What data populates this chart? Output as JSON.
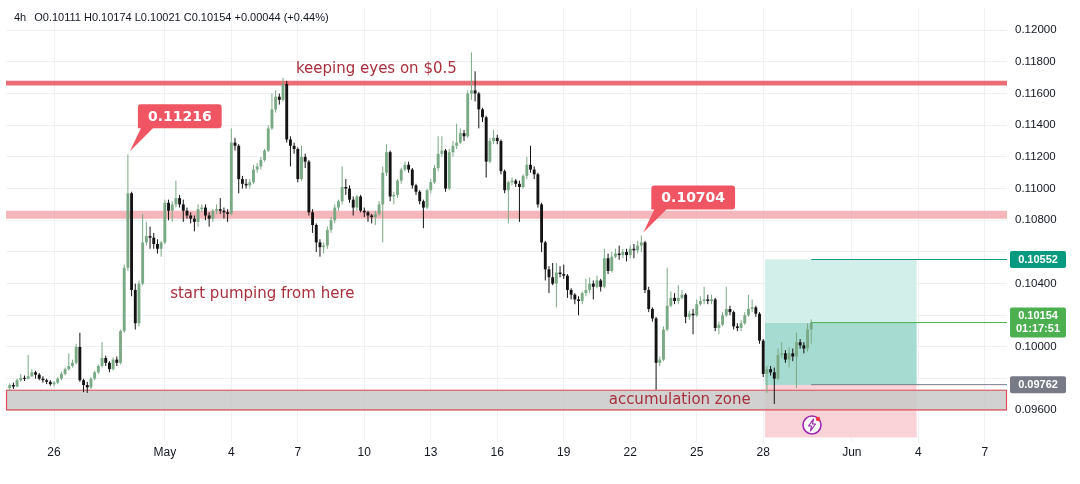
{
  "chart_data": {
    "type": "candlestick",
    "title": "4h",
    "subtitle": "O0.10111 H0.10174 L0.10021 C0.10154 +0.00044 (+0.44%)",
    "x": [
      "--04-24T00:00",
      "--04-24T04:00",
      "--04-24T08:00",
      "--04-24T12:00",
      "--04-24T16:00",
      "--04-24T20:00",
      "--04-25T00:00",
      "--04-25T04:00",
      "--04-25T08:00",
      "--04-25T12:00",
      "--04-25T16:00",
      "--04-25T20:00",
      "--04-26T00:00",
      "--04-26T04:00",
      "--04-26T08:00",
      "--04-26T12:00",
      "--04-26T16:00",
      "--04-26T20:00",
      "--04-27T00:00",
      "--04-27T04:00",
      "--04-27T08:00",
      "--04-27T12:00",
      "--04-27T16:00",
      "--04-27T20:00",
      "--04-28T00:00",
      "--04-28T04:00",
      "--04-28T08:00",
      "--04-28T12:00",
      "--04-28T16:00",
      "--04-28T20:00",
      "--04-29T00:00",
      "--04-29T04:00",
      "--04-29T08:00",
      "--04-29T12:00",
      "--04-29T16:00",
      "--04-29T20:00",
      "--04-30T00:00",
      "--04-30T04:00",
      "--04-30T08:00",
      "--04-30T12:00",
      "--04-30T16:00",
      "--04-30T20:00",
      "--05-01T00:00",
      "--05-01T04:00",
      "--05-01T08:00",
      "--05-01T12:00",
      "--05-01T16:00",
      "--05-01T20:00",
      "--05-02T00:00",
      "--05-02T04:00",
      "--05-02T08:00",
      "--05-02T12:00",
      "--05-02T16:00",
      "--05-02T20:00",
      "--05-03T00:00",
      "--05-03T04:00",
      "--05-03T08:00",
      "--05-03T12:00",
      "--05-03T16:00",
      "--05-03T20:00",
      "--05-04T00:00",
      "--05-04T04:00",
      "--05-04T08:00",
      "--05-04T12:00",
      "--05-04T16:00",
      "--05-04T20:00",
      "--05-05T00:00",
      "--05-05T04:00",
      "--05-05T08:00",
      "--05-05T12:00",
      "--05-05T16:00",
      "--05-05T20:00",
      "--05-06T00:00",
      "--05-06T04:00",
      "--05-06T08:00",
      "--05-06T12:00",
      "--05-06T16:00",
      "--05-06T20:00",
      "--05-07T00:00",
      "--05-07T04:00",
      "--05-07T08:00",
      "--05-07T12:00",
      "--05-07T16:00",
      "--05-07T20:00",
      "--05-08T00:00",
      "--05-08T04:00",
      "--05-08T08:00",
      "--05-08T12:00",
      "--05-08T16:00",
      "--05-08T20:00",
      "--05-09T00:00",
      "--05-09T04:00",
      "--05-09T08:00",
      "--05-09T12:00",
      "--05-09T16:00",
      "--05-09T20:00",
      "--05-10T00:00",
      "--05-10T04:00",
      "--05-10T08:00",
      "--05-10T12:00",
      "--05-10T16:00",
      "--05-10T20:00",
      "--05-11T00:00",
      "--05-11T04:00",
      "--05-11T08:00",
      "--05-11T12:00",
      "--05-11T16:00",
      "--05-11T20:00",
      "--05-12T00:00",
      "--05-12T04:00",
      "--05-12T08:00",
      "--05-12T12:00",
      "--05-12T16:00",
      "--05-12T20:00",
      "--05-13T00:00",
      "--05-13T04:00",
      "--05-13T08:00",
      "--05-13T12:00",
      "--05-13T16:00",
      "--05-13T20:00",
      "--05-14T00:00",
      "--05-14T04:00",
      "--05-14T08:00",
      "--05-14T12:00",
      "--05-14T16:00",
      "--05-14T20:00",
      "--05-15T00:00",
      "--05-15T04:00",
      "--05-15T08:00",
      "--05-15T12:00",
      "--05-15T16:00",
      "--05-15T20:00",
      "--05-16T00:00",
      "--05-16T04:00",
      "--05-16T08:00",
      "--05-16T12:00",
      "--05-16T16:00",
      "--05-16T20:00",
      "--05-17T00:00",
      "--05-17T04:00",
      "--05-17T08:00",
      "--05-17T12:00",
      "--05-17T16:00",
      "--05-17T20:00",
      "--05-18T00:00",
      "--05-18T04:00",
      "--05-18T08:00",
      "--05-18T12:00",
      "--05-18T16:00",
      "--05-18T20:00",
      "--05-19T00:00",
      "--05-19T04:00",
      "--05-19T08:00",
      "--05-19T12:00",
      "--05-19T16:00",
      "--05-19T20:00",
      "--05-20T00:00",
      "--05-20T04:00",
      "--05-20T08:00",
      "--05-20T12:00",
      "--05-20T16:00",
      "--05-20T20:00",
      "--05-21T00:00",
      "--05-21T04:00",
      "--05-21T08:00",
      "--05-21T12:00",
      "--05-21T16:00",
      "--05-21T20:00",
      "--05-22T00:00",
      "--05-22T04:00",
      "--05-22T08:00",
      "--05-22T12:00",
      "--05-22T16:00",
      "--05-22T20:00",
      "--05-23T00:00",
      "--05-23T04:00",
      "--05-23T08:00",
      "--05-23T12:00",
      "--05-23T16:00",
      "--05-23T20:00",
      "--05-24T00:00",
      "--05-24T04:00",
      "--05-24T08:00",
      "--05-24T12:00",
      "--05-24T16:00",
      "--05-24T20:00",
      "--05-25T00:00",
      "--05-25T04:00",
      "--05-25T08:00",
      "--05-25T12:00",
      "--05-25T16:00",
      "--05-25T20:00",
      "--05-26T00:00",
      "--05-26T04:00",
      "--05-26T08:00",
      "--05-26T12:00",
      "--05-26T16:00",
      "--05-26T20:00",
      "--05-27T00:00",
      "--05-27T04:00",
      "--05-27T08:00",
      "--05-27T12:00",
      "--05-27T16:00",
      "--05-27T20:00",
      "--05-28T00:00",
      "--05-28T04:00",
      "--05-28T08:00",
      "--05-28T12:00",
      "--05-28T16:00",
      "--05-28T20:00",
      "--05-29T00:00",
      "--05-29T04:00",
      "--05-29T08:00",
      "--05-29T12:00",
      "--05-29T16:00",
      "--05-29T20:00",
      "--05-30T00:00",
      "--05-30T04:00"
    ],
    "ohlc": [
      [
        0.0974,
        0.0977,
        0.09725,
        0.0976
      ],
      [
        0.0976,
        0.09775,
        0.09735,
        0.0975
      ],
      [
        0.0975,
        0.098,
        0.09745,
        0.0979
      ],
      [
        0.0979,
        0.0983,
        0.0978,
        0.09805
      ],
      [
        0.09805,
        0.0982,
        0.09785,
        0.098
      ],
      [
        0.098,
        0.0995,
        0.09795,
        0.09815
      ],
      [
        0.09815,
        0.0986,
        0.0981,
        0.0984
      ],
      [
        0.0984,
        0.0985,
        0.098,
        0.09825
      ],
      [
        0.09825,
        0.09835,
        0.0979,
        0.098
      ],
      [
        0.098,
        0.09815,
        0.09775,
        0.0979
      ],
      [
        0.0979,
        0.098,
        0.09765,
        0.0978
      ],
      [
        0.0978,
        0.0979,
        0.09755,
        0.09765
      ],
      [
        0.09765,
        0.09785,
        0.0975,
        0.09775
      ],
      [
        0.09775,
        0.0981,
        0.09765,
        0.098
      ],
      [
        0.098,
        0.09845,
        0.0979,
        0.0983
      ],
      [
        0.0983,
        0.0987,
        0.0982,
        0.0986
      ],
      [
        0.0986,
        0.0996,
        0.0985,
        0.0988
      ],
      [
        0.0988,
        0.0992,
        0.0987,
        0.099
      ],
      [
        0.099,
        0.1002,
        0.0989,
        0.1
      ],
      [
        0.1,
        0.1009,
        0.0978,
        0.0979
      ],
      [
        0.0979,
        0.098,
        0.09715,
        0.0976
      ],
      [
        0.0976,
        0.0978,
        0.0971,
        0.09745
      ],
      [
        0.09745,
        0.0981,
        0.09735,
        0.098
      ],
      [
        0.098,
        0.0985,
        0.0979,
        0.0984
      ],
      [
        0.0984,
        0.0989,
        0.0983,
        0.0988
      ],
      [
        0.0988,
        0.1003,
        0.0987,
        0.0993
      ],
      [
        0.0993,
        0.09945,
        0.0988,
        0.099
      ],
      [
        0.099,
        0.0991,
        0.0984,
        0.0986
      ],
      [
        0.0986,
        0.09935,
        0.0985,
        0.0992
      ],
      [
        0.0992,
        0.0994,
        0.0988,
        0.099
      ],
      [
        0.099,
        0.1011,
        0.0989,
        0.101
      ],
      [
        0.101,
        0.1052,
        0.1009,
        0.105
      ],
      [
        0.105,
        0.11216,
        0.1048,
        0.1097
      ],
      [
        0.1097,
        0.1098,
        0.1032,
        0.1036
      ],
      [
        0.1036,
        0.104,
        0.1011,
        0.1015
      ],
      [
        0.1015,
        0.1042,
        0.1013,
        0.104
      ],
      [
        0.104,
        0.1084,
        0.1039,
        0.1066
      ],
      [
        0.1066,
        0.1079,
        0.1064,
        0.107
      ],
      [
        0.107,
        0.1076,
        0.1062,
        0.1069
      ],
      [
        0.1069,
        0.1072,
        0.1062,
        0.1065
      ],
      [
        0.1065,
        0.1068,
        0.1059,
        0.1062
      ],
      [
        0.1062,
        0.1067,
        0.1057,
        0.1066
      ],
      [
        0.1066,
        0.1093,
        0.1065,
        0.1091
      ],
      [
        0.1091,
        0.1093,
        0.108,
        0.1086
      ],
      [
        0.1086,
        0.1092,
        0.1079,
        0.109
      ],
      [
        0.109,
        0.1105,
        0.1088,
        0.1094
      ],
      [
        0.1094,
        0.1096,
        0.1088,
        0.109
      ],
      [
        0.109,
        0.1093,
        0.1079,
        0.1086
      ],
      [
        0.1086,
        0.1088,
        0.1081,
        0.1083
      ],
      [
        0.1083,
        0.1085,
        0.1078,
        0.1081
      ],
      [
        0.1081,
        0.1083,
        0.1073,
        0.1079
      ],
      [
        0.1079,
        0.109,
        0.1076,
        0.1087
      ],
      [
        0.1087,
        0.109,
        0.1085,
        0.1088
      ],
      [
        0.1088,
        0.109,
        0.108,
        0.1083
      ],
      [
        0.1083,
        0.1085,
        0.1076,
        0.1081
      ],
      [
        0.1081,
        0.1087,
        0.1079,
        0.1086
      ],
      [
        0.1086,
        0.109,
        0.1084,
        0.1087
      ],
      [
        0.1087,
        0.1094,
        0.1084,
        0.1086
      ],
      [
        0.1086,
        0.1088,
        0.1081,
        0.1085
      ],
      [
        0.1085,
        0.1087,
        0.1079,
        0.1084
      ],
      [
        0.1084,
        0.1138,
        0.1083,
        0.1129
      ],
      [
        0.1129,
        0.1132,
        0.1124,
        0.1127
      ],
      [
        0.1127,
        0.1128,
        0.1097,
        0.1106
      ],
      [
        0.1106,
        0.1108,
        0.11,
        0.1103
      ],
      [
        0.1103,
        0.1106,
        0.11,
        0.1102
      ],
      [
        0.1102,
        0.1106,
        0.11,
        0.1104
      ],
      [
        0.1104,
        0.1115,
        0.1103,
        0.1112
      ],
      [
        0.1112,
        0.1116,
        0.111,
        0.1114
      ],
      [
        0.1114,
        0.112,
        0.1112,
        0.1118
      ],
      [
        0.1118,
        0.1125,
        0.1117,
        0.1124
      ],
      [
        0.1124,
        0.114,
        0.1123,
        0.1138
      ],
      [
        0.1138,
        0.116,
        0.1137,
        0.115
      ],
      [
        0.115,
        0.1162,
        0.1148,
        0.1158
      ],
      [
        0.1158,
        0.116,
        0.1153,
        0.1156
      ],
      [
        0.1156,
        0.117,
        0.1155,
        0.1166
      ],
      [
        0.1166,
        0.1168,
        0.1129,
        0.1131
      ],
      [
        0.1131,
        0.1133,
        0.1114,
        0.1127
      ],
      [
        0.1127,
        0.1129,
        0.1122,
        0.1125
      ],
      [
        0.1125,
        0.1126,
        0.1104,
        0.1106
      ],
      [
        0.1106,
        0.1127,
        0.1105,
        0.112
      ],
      [
        0.112,
        0.1122,
        0.1113,
        0.1117
      ],
      [
        0.1117,
        0.1118,
        0.1083,
        0.1085
      ],
      [
        0.1085,
        0.1087,
        0.1072,
        0.1077
      ],
      [
        0.1077,
        0.1078,
        0.106,
        0.1066
      ],
      [
        0.1066,
        0.1068,
        0.1057,
        0.1063
      ],
      [
        0.1063,
        0.1066,
        0.1059,
        0.1064
      ],
      [
        0.1064,
        0.1076,
        0.1062,
        0.1074
      ],
      [
        0.1074,
        0.1082,
        0.1072,
        0.108
      ],
      [
        0.108,
        0.109,
        0.1078,
        0.1088
      ],
      [
        0.1088,
        0.1093,
        0.1086,
        0.1092
      ],
      [
        0.1092,
        0.1114,
        0.109,
        0.1101
      ],
      [
        0.1101,
        0.1106,
        0.1096,
        0.11
      ],
      [
        0.11,
        0.1102,
        0.1091,
        0.1093
      ],
      [
        0.1093,
        0.1095,
        0.1083,
        0.1088
      ],
      [
        0.1088,
        0.1096,
        0.1086,
        0.1095
      ],
      [
        0.1095,
        0.1096,
        0.1085,
        0.1086
      ],
      [
        0.1086,
        0.1088,
        0.1082,
        0.1085
      ],
      [
        0.1085,
        0.1086,
        0.1079,
        0.1083
      ],
      [
        0.1083,
        0.1084,
        0.1078,
        0.1082
      ],
      [
        0.1082,
        0.1086,
        0.1077,
        0.1084
      ],
      [
        0.1084,
        0.1092,
        0.1083,
        0.109
      ],
      [
        0.109,
        0.1114,
        0.1066,
        0.111
      ],
      [
        0.111,
        0.1128,
        0.1108,
        0.1123
      ],
      [
        0.1123,
        0.1124,
        0.1092,
        0.1095
      ],
      [
        0.1095,
        0.1098,
        0.109,
        0.1096
      ],
      [
        0.1096,
        0.1106,
        0.1094,
        0.1105
      ],
      [
        0.1105,
        0.1113,
        0.1103,
        0.1112
      ],
      [
        0.1112,
        0.1117,
        0.1111,
        0.1115
      ],
      [
        0.1115,
        0.1117,
        0.111,
        0.1112
      ],
      [
        0.1112,
        0.1113,
        0.11,
        0.1102
      ],
      [
        0.1102,
        0.1103,
        0.1096,
        0.1098
      ],
      [
        0.1098,
        0.1099,
        0.109,
        0.1092
      ],
      [
        0.1092,
        0.1093,
        0.1075,
        0.1088
      ],
      [
        0.1088,
        0.11,
        0.1087,
        0.1099
      ],
      [
        0.1099,
        0.1106,
        0.1097,
        0.1104
      ],
      [
        0.1104,
        0.1115,
        0.1103,
        0.1113
      ],
      [
        0.1113,
        0.1133,
        0.1111,
        0.1122
      ],
      [
        0.1122,
        0.1133,
        0.112,
        0.1124
      ],
      [
        0.1124,
        0.1125,
        0.1098,
        0.11
      ],
      [
        0.11,
        0.1125,
        0.1099,
        0.1123
      ],
      [
        0.1123,
        0.113,
        0.112,
        0.1127
      ],
      [
        0.1127,
        0.1141,
        0.1125,
        0.1129
      ],
      [
        0.1129,
        0.1138,
        0.1128,
        0.1135
      ],
      [
        0.1135,
        0.1137,
        0.113,
        0.1133
      ],
      [
        0.1133,
        0.1162,
        0.1132,
        0.116
      ],
      [
        0.116,
        0.1186,
        0.1156,
        0.1162
      ],
      [
        0.1162,
        0.1174,
        0.1155,
        0.116
      ],
      [
        0.116,
        0.1161,
        0.1138,
        0.115
      ],
      [
        0.115,
        0.1151,
        0.1142,
        0.1145
      ],
      [
        0.1145,
        0.1146,
        0.1107,
        0.1117
      ],
      [
        0.1117,
        0.1132,
        0.1116,
        0.113
      ],
      [
        0.113,
        0.1137,
        0.1128,
        0.1132
      ],
      [
        0.1132,
        0.1134,
        0.1128,
        0.113
      ],
      [
        0.113,
        0.1131,
        0.1109,
        0.1111
      ],
      [
        0.1111,
        0.1112,
        0.1097,
        0.1099
      ],
      [
        0.1099,
        0.1105,
        0.1078,
        0.1104
      ],
      [
        0.1104,
        0.1107,
        0.1102,
        0.1105
      ],
      [
        0.1105,
        0.1106,
        0.1101,
        0.1103
      ],
      [
        0.1103,
        0.1105,
        0.1079,
        0.1101
      ],
      [
        0.1101,
        0.1109,
        0.11,
        0.1108
      ],
      [
        0.1108,
        0.112,
        0.1106,
        0.1115
      ],
      [
        0.1115,
        0.1127,
        0.111,
        0.1112
      ],
      [
        0.1112,
        0.1114,
        0.1106,
        0.1109
      ],
      [
        0.1109,
        0.111,
        0.1088,
        0.109
      ],
      [
        0.109,
        0.1091,
        0.106,
        0.1066
      ],
      [
        0.1066,
        0.1067,
        0.1042,
        0.1049
      ],
      [
        0.1049,
        0.1051,
        0.1034,
        0.1044
      ],
      [
        0.1044,
        0.1053,
        0.1039,
        0.104
      ],
      [
        0.104,
        0.1053,
        0.1025,
        0.1047
      ],
      [
        0.1047,
        0.1051,
        0.1044,
        0.1046
      ],
      [
        0.1046,
        0.1052,
        0.1043,
        0.1045
      ],
      [
        0.1045,
        0.1046,
        0.1031,
        0.1036
      ],
      [
        0.1036,
        0.1037,
        0.103,
        0.1033
      ],
      [
        0.1033,
        0.1034,
        0.1027,
        0.103
      ],
      [
        0.103,
        0.1032,
        0.102,
        0.1029
      ],
      [
        0.1029,
        0.1035,
        0.1027,
        0.1034
      ],
      [
        0.1034,
        0.1043,
        0.1032,
        0.1036
      ],
      [
        0.1036,
        0.1044,
        0.1034,
        0.104
      ],
      [
        0.104,
        0.1042,
        0.103,
        0.1038
      ],
      [
        0.1038,
        0.1045,
        0.1037,
        0.1042
      ],
      [
        0.1042,
        0.1043,
        0.1035,
        0.1038
      ],
      [
        0.1038,
        0.1062,
        0.1037,
        0.1056
      ],
      [
        0.1056,
        0.1059,
        0.1046,
        0.1048
      ],
      [
        0.1048,
        0.106,
        0.1047,
        0.1057
      ],
      [
        0.1057,
        0.1062,
        0.1056,
        0.1059
      ],
      [
        0.1059,
        0.1064,
        0.1055,
        0.1058
      ],
      [
        0.1058,
        0.1062,
        0.1056,
        0.106
      ],
      [
        0.106,
        0.1062,
        0.1054,
        0.1058
      ],
      [
        0.1058,
        0.1064,
        0.1056,
        0.1062
      ],
      [
        0.1062,
        0.1065,
        0.1056,
        0.1061
      ],
      [
        0.1061,
        0.1067,
        0.1059,
        0.1064
      ],
      [
        0.1064,
        0.10704,
        0.106,
        0.1066
      ],
      [
        0.1066,
        0.1067,
        0.1034,
        0.1036
      ],
      [
        0.1036,
        0.1038,
        0.1022,
        0.1024
      ],
      [
        0.1024,
        0.1025,
        0.1016,
        0.1018
      ],
      [
        0.1018,
        0.1019,
        0.0973,
        0.099
      ],
      [
        0.099,
        0.0994,
        0.0988,
        0.0992
      ],
      [
        0.0992,
        0.1013,
        0.0991,
        0.1011
      ],
      [
        0.1011,
        0.105,
        0.101,
        0.1026
      ],
      [
        0.1026,
        0.1035,
        0.1025,
        0.1031
      ],
      [
        0.1031,
        0.1034,
        0.1027,
        0.1029
      ],
      [
        0.1029,
        0.1039,
        0.1027,
        0.1031
      ],
      [
        0.1031,
        0.1036,
        0.103,
        0.1033
      ],
      [
        0.1033,
        0.1034,
        0.1015,
        0.1019
      ],
      [
        0.1019,
        0.1023,
        0.1017,
        0.1021
      ],
      [
        0.1021,
        0.1024,
        0.1008,
        0.102
      ],
      [
        0.102,
        0.103,
        0.1019,
        0.1027
      ],
      [
        0.1027,
        0.1032,
        0.1026,
        0.1029
      ],
      [
        0.1029,
        0.1038,
        0.1027,
        0.103
      ],
      [
        0.103,
        0.1033,
        0.1027,
        0.1029
      ],
      [
        0.1029,
        0.1033,
        0.1027,
        0.103
      ],
      [
        0.103,
        0.1031,
        0.101,
        0.1012
      ],
      [
        0.1012,
        0.1016,
        0.1008,
        0.1014
      ],
      [
        0.1014,
        0.1022,
        0.1013,
        0.102
      ],
      [
        0.102,
        0.1038,
        0.1019,
        0.1024
      ],
      [
        0.1024,
        0.1026,
        0.102,
        0.1022
      ],
      [
        0.1022,
        0.1023,
        0.1011,
        0.1013
      ],
      [
        0.1013,
        0.1015,
        0.101,
        0.1012
      ],
      [
        0.1012,
        0.1017,
        0.101,
        0.1015
      ],
      [
        0.1015,
        0.1022,
        0.1014,
        0.102
      ],
      [
        0.102,
        0.1033,
        0.1019,
        0.1024
      ],
      [
        0.1024,
        0.103,
        0.1022,
        0.1025
      ],
      [
        0.1025,
        0.1026,
        0.1019,
        0.1021
      ],
      [
        0.1021,
        0.1022,
        0.1002,
        0.1004
      ],
      [
        0.1004,
        0.1005,
        0.0981,
        0.0983
      ],
      [
        0.0983,
        0.0988,
        0.0971,
        0.0986
      ],
      [
        0.0986,
        0.0988,
        0.0982,
        0.0984
      ],
      [
        0.0984,
        0.0987,
        0.0964,
        0.098
      ],
      [
        0.098,
        0.0999,
        0.0979,
        0.0995
      ],
      [
        0.0995,
        0.1003,
        0.0993,
        0.0996
      ],
      [
        0.0996,
        0.0998,
        0.099,
        0.0992
      ],
      [
        0.0992,
        0.1,
        0.0987,
        0.0996
      ],
      [
        0.0996,
        0.0999,
        0.0991,
        0.0994
      ],
      [
        0.0994,
        0.1009,
        0.0974,
        0.1003
      ],
      [
        0.1003,
        0.1005,
        0.0999,
        0.1001
      ],
      [
        0.1001,
        0.1003,
        0.0996,
        0.0999
      ],
      [
        0.0999,
        0.1015,
        0.0997,
        0.10111
      ],
      [
        0.10111,
        0.10174,
        0.10021,
        0.10154
      ]
    ],
    "colors": [
      "#7aa985",
      "#131313",
      "#7aa985",
      "#7aa985",
      "#131313",
      "#7aa985",
      "#7aa985",
      "#131313",
      "#131313",
      "#131313",
      "#131313",
      "#131313",
      "#7aa985",
      "#7aa985",
      "#7aa985",
      "#7aa985",
      "#7aa985",
      "#7aa985",
      "#7aa985",
      "#131313",
      "#131313",
      "#131313",
      "#7aa985",
      "#7aa985",
      "#7aa985",
      "#7aa985",
      "#131313",
      "#131313",
      "#7aa985",
      "#131313",
      "#7aa985",
      "#7aa985",
      "#7aa985",
      "#131313",
      "#131313",
      "#7aa985",
      "#7aa985",
      "#7aa985",
      "#131313",
      "#131313",
      "#131313",
      "#7aa985",
      "#7aa985",
      "#131313",
      "#7aa985",
      "#7aa985",
      "#131313",
      "#131313",
      "#131313",
      "#131313",
      "#131313",
      "#7aa985",
      "#7aa985",
      "#131313",
      "#131313",
      "#7aa985",
      "#7aa985",
      "#131313",
      "#131313",
      "#131313",
      "#7aa985",
      "#131313",
      "#131313",
      "#131313",
      "#131313",
      "#7aa985",
      "#7aa985",
      "#7aa985",
      "#7aa985",
      "#7aa985",
      "#7aa985",
      "#7aa985",
      "#7aa985",
      "#131313",
      "#7aa985",
      "#131313",
      "#131313",
      "#131313",
      "#131313",
      "#7aa985",
      "#131313",
      "#131313",
      "#131313",
      "#131313",
      "#131313",
      "#7aa985",
      "#7aa985",
      "#7aa985",
      "#7aa985",
      "#7aa985",
      "#7aa985",
      "#131313",
      "#131313",
      "#131313",
      "#7aa985",
      "#131313",
      "#131313",
      "#131313",
      "#131313",
      "#7aa985",
      "#7aa985",
      "#7aa985",
      "#7aa985",
      "#131313",
      "#7aa985",
      "#7aa985",
      "#7aa985",
      "#7aa985",
      "#131313",
      "#131313",
      "#131313",
      "#131313",
      "#131313",
      "#7aa985",
      "#7aa985",
      "#7aa985",
      "#7aa985",
      "#7aa985",
      "#131313",
      "#7aa985",
      "#7aa985",
      "#7aa985",
      "#7aa985",
      "#131313",
      "#7aa985",
      "#7aa985",
      "#131313",
      "#131313",
      "#131313",
      "#131313",
      "#7aa985",
      "#7aa985",
      "#131313",
      "#131313",
      "#131313",
      "#7aa985",
      "#7aa985",
      "#131313",
      "#131313",
      "#7aa985",
      "#7aa985",
      "#131313",
      "#131313",
      "#131313",
      "#131313",
      "#131313",
      "#131313",
      "#131313",
      "#7aa985",
      "#131313",
      "#131313",
      "#131313",
      "#131313",
      "#131313",
      "#131313",
      "#7aa985",
      "#7aa985",
      "#7aa985",
      "#131313",
      "#7aa985",
      "#131313",
      "#7aa985",
      "#131313",
      "#7aa985",
      "#7aa985",
      "#131313",
      "#7aa985",
      "#131313",
      "#7aa985",
      "#131313",
      "#7aa985",
      "#7aa985",
      "#131313",
      "#131313",
      "#131313",
      "#131313",
      "#7aa985",
      "#7aa985",
      "#7aa985",
      "#7aa985",
      "#131313",
      "#7aa985",
      "#7aa985",
      "#131313",
      "#7aa985",
      "#131313",
      "#7aa985",
      "#7aa985",
      "#7aa985",
      "#131313",
      "#7aa985",
      "#131313",
      "#7aa985",
      "#7aa985",
      "#7aa985",
      "#131313",
      "#131313",
      "#131313",
      "#7aa985",
      "#7aa985",
      "#7aa985",
      "#7aa985",
      "#131313",
      "#131313",
      "#131313",
      "#7aa985",
      "#131313",
      "#131313",
      "#7aa985",
      "#7aa985",
      "#131313",
      "#7aa985",
      "#131313",
      "#7aa985",
      "#131313",
      "#131313",
      "#7aa985",
      "#7aa985"
    ],
    "series": [
      {
        "type": "bar",
        "x": [
          "--05-31T12:00"
        ],
        "base": [
          0.10154
        ],
        "values": [
          0.00398
        ],
        "color": "#d3efe9"
      },
      {
        "type": "bar",
        "x": [
          "--05-31T12:00"
        ],
        "base": [
          0.09762
        ],
        "values": [
          0.00392
        ],
        "color": "#a6dbd1"
      },
      {
        "type": "bar",
        "x": [
          "--05-31T12:00"
        ],
        "base": [
          0.0943
        ],
        "values": [
          0.00332
        ],
        "color": "#f9d3d7"
      }
    ],
    "xlim": [
      "--04-23T20:00",
      "--06-08T00:00"
    ],
    "xticks": [
      {
        "value": "--04-26",
        "label": "26"
      },
      {
        "value": "--05-01",
        "label": "May"
      },
      {
        "value": "--05-04",
        "label": "4"
      },
      {
        "value": "--05-07",
        "label": "7"
      },
      {
        "value": "--05-10",
        "label": "10"
      },
      {
        "value": "--05-13",
        "label": "13"
      },
      {
        "value": "--05-16",
        "label": "16"
      },
      {
        "value": "--05-19",
        "label": "19"
      },
      {
        "value": "--05-22",
        "label": "22"
      },
      {
        "value": "--05-25",
        "label": "25"
      },
      {
        "value": "--05-28",
        "label": "28"
      },
      {
        "value": "--06-01",
        "label": "Jun"
      },
      {
        "value": "--06-04",
        "label": "4"
      },
      {
        "value": "--06-07",
        "label": "7"
      }
    ],
    "ylim": [
      0.094,
      0.1214
    ],
    "yticks": [
      {
        "value": 0.096,
        "label": "0.09600"
      },
      {
        "value": 0.098,
        "label": null
      },
      {
        "value": 0.1,
        "label": "0.10000"
      },
      {
        "value": 0.102,
        "label": null
      },
      {
        "value": 0.104,
        "label": "0.10400"
      },
      {
        "value": 0.106,
        "label": null
      },
      {
        "value": 0.108,
        "label": "0.10800"
      },
      {
        "value": 0.11,
        "label": "0.11000"
      },
      {
        "value": 0.112,
        "label": "0.11200"
      },
      {
        "value": 0.114,
        "label": "0.11400"
      },
      {
        "value": 0.116,
        "label": "0.11600"
      },
      {
        "value": 0.118,
        "label": "0.11800"
      },
      {
        "value": 0.12,
        "label": "0.12000"
      }
    ],
    "grid": true,
    "bands": [
      {
        "axis": "y",
        "from": 0.1165,
        "to": 0.1168,
        "label": "keeping eyes on $0.5",
        "color": "#e8535e"
      },
      {
        "axis": "y",
        "from": 0.1081,
        "to": 0.1086,
        "color": "#f2a9af"
      },
      {
        "axis": "y",
        "from": 0.096,
        "to": 0.0973,
        "label": "accumulation zone",
        "color": "#c9c9c9"
      }
    ],
    "ref_lines": [
      {
        "axis": "y",
        "value": 0.10552,
        "label": "0.10552",
        "color": "#089981"
      },
      {
        "axis": "y",
        "value": 0.10154,
        "label": "0.10154 01:17:51",
        "color": "#4caf50"
      },
      {
        "axis": "y",
        "value": 0.09762,
        "label": "0.09762",
        "color": "#787b86"
      }
    ],
    "annotations": [
      "start pumping from here",
      {
        "text": "0.11216",
        "x": "--04-29T08:00",
        "y": 0.11216
      },
      {
        "text": "0.10704",
        "x": "--05-22T12:00",
        "y": 0.10704
      }
    ]
  }
}
